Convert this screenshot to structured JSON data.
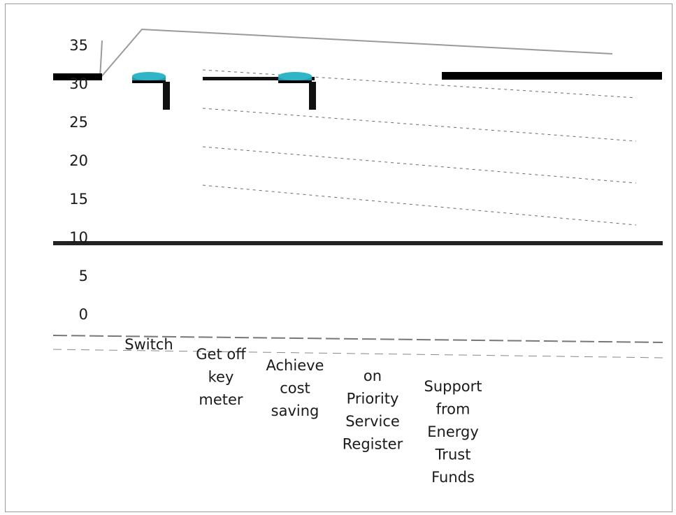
{
  "chart_data": {
    "type": "bar",
    "categories": [
      "Switch",
      "Get off key meter",
      "Achieve cost saving",
      "on Priority Service Register",
      "Support from Energy Trust Funds"
    ],
    "category_lines": [
      [
        "Switch"
      ],
      [
        "Get off",
        "key",
        "meter"
      ],
      [
        "Achieve",
        "cost",
        "saving"
      ],
      [
        "on",
        "Priority",
        "Service",
        "Register"
      ],
      [
        "Support",
        "from",
        "Energy",
        "Trust",
        "Funds"
      ]
    ],
    "series": [
      {
        "values": [
          31,
          0,
          31,
          0,
          0
        ]
      }
    ],
    "ylim": [
      0,
      35
    ],
    "yticks": [
      "0",
      "5",
      "10",
      "15",
      "20",
      "25",
      "30",
      "35"
    ],
    "title": "",
    "xlabel": "",
    "ylabel": "",
    "grid": false,
    "legend": "none",
    "bar_color": "#1e9aac",
    "bar_top_color": "#2fb6c6"
  }
}
